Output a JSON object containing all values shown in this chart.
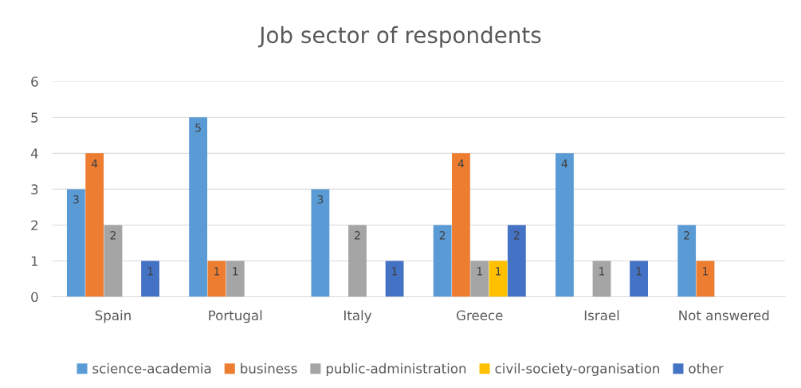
{
  "chart_data": {
    "type": "bar",
    "title": "Job sector of respondents",
    "categories": [
      "Spain",
      "Portugal",
      "Italy",
      "Greece",
      "Israel",
      "Not answered"
    ],
    "series": [
      {
        "name": "science-academia",
        "color": "#5b9bd5",
        "values": [
          3,
          5,
          3,
          2,
          4,
          2
        ],
        "value_labels": [
          "3",
          "5",
          "3",
          "2",
          "4",
          "2"
        ]
      },
      {
        "name": "business",
        "color": "#ed7d31",
        "values": [
          4,
          1,
          0,
          4,
          0,
          1
        ],
        "value_labels": [
          "4",
          "1",
          null,
          "4",
          null,
          "1"
        ]
      },
      {
        "name": "public-administration",
        "color": "#a5a5a5",
        "values": [
          2,
          1,
          2,
          1,
          1,
          0
        ],
        "value_labels": [
          "2",
          "1",
          "2",
          "1",
          "1",
          null
        ]
      },
      {
        "name": "civil-society-organisation",
        "color": "#ffc000",
        "values": [
          0,
          0,
          0,
          1,
          0,
          0
        ],
        "value_labels": [
          null,
          null,
          null,
          "1",
          null,
          null
        ]
      },
      {
        "name": "other",
        "color": "#4472c4",
        "values": [
          1,
          0,
          1,
          2,
          1,
          0
        ],
        "value_labels": [
          "1",
          null,
          "1",
          "2",
          "1",
          null
        ]
      }
    ],
    "ylim": [
      0,
      6
    ],
    "yticks": [
      0,
      1,
      2,
      3,
      4,
      5,
      6
    ],
    "grid": "y",
    "legend": "bottom"
  }
}
